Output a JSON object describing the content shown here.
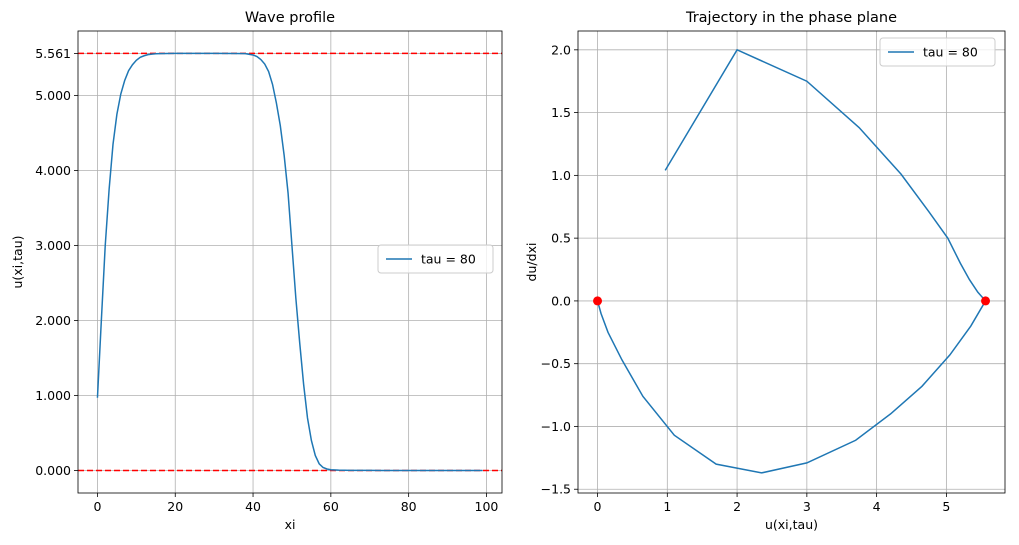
{
  "chart_data": [
    {
      "type": "line",
      "title": "Wave profile",
      "xlabel": "xi",
      "ylabel": "u(xi,tau)",
      "xlim": [
        -5,
        104
      ],
      "ylim": [
        -0.3,
        5.86
      ],
      "xticks": [
        0,
        20,
        40,
        60,
        80,
        100
      ],
      "xtick_labels": [
        "0",
        "20",
        "40",
        "60",
        "80",
        "100"
      ],
      "yticks": [
        0,
        1,
        2,
        3,
        4,
        5,
        5.561
      ],
      "ytick_labels": [
        "0.000",
        "1.000",
        "2.000",
        "3.000",
        "4.000",
        "5.000",
        "5.561"
      ],
      "grid": true,
      "legend_position": "center-right",
      "series": [
        {
          "name": "tau = 80",
          "color": "#1f77b4",
          "x": [
            0,
            1,
            2,
            3,
            4,
            5,
            6,
            7,
            8,
            9,
            10,
            11,
            12,
            13,
            14,
            15,
            16,
            18,
            20,
            25,
            30,
            35,
            38,
            40,
            41,
            42,
            43,
            44,
            45,
            46,
            47,
            48,
            49,
            50,
            51,
            52,
            53,
            54,
            55,
            56,
            57,
            58,
            59,
            60,
            62,
            65,
            70,
            80,
            90,
            99
          ],
          "y": [
            0.97,
            2.0,
            3.0,
            3.75,
            4.35,
            4.75,
            5.02,
            5.2,
            5.33,
            5.41,
            5.47,
            5.51,
            5.53,
            5.545,
            5.552,
            5.556,
            5.558,
            5.56,
            5.561,
            5.561,
            5.561,
            5.56,
            5.558,
            5.54,
            5.52,
            5.48,
            5.42,
            5.32,
            5.15,
            4.9,
            4.6,
            4.2,
            3.7,
            3.0,
            2.3,
            1.7,
            1.15,
            0.7,
            0.4,
            0.2,
            0.09,
            0.04,
            0.02,
            0.01,
            0.005,
            0.002,
            0.001,
            0.0,
            0.0,
            0.0
          ]
        }
      ],
      "reference_lines": [
        {
          "y": 5.561,
          "color": "#ff0000",
          "style": "dashed"
        },
        {
          "y": 0.0,
          "color": "#ff0000",
          "style": "dashed"
        }
      ]
    },
    {
      "type": "line",
      "title": "Trajectory in the phase plane",
      "xlabel": "u(xi,tau)",
      "ylabel": "du/dxi",
      "xlim": [
        -0.28,
        5.84
      ],
      "ylim": [
        -1.53,
        2.15
      ],
      "xticks": [
        0,
        1,
        2,
        3,
        4,
        5
      ],
      "xtick_labels": [
        "0",
        "1",
        "2",
        "3",
        "4",
        "5"
      ],
      "yticks": [
        -1.5,
        -1.0,
        -0.5,
        0.0,
        0.5,
        1.0,
        1.5,
        2.0
      ],
      "ytick_labels": [
        "−1.5",
        "−1.0",
        "−0.5",
        "0.0",
        "0.5",
        "1.0",
        "1.5",
        "2.0"
      ],
      "grid": true,
      "legend_position": "top-right",
      "series": [
        {
          "name": "tau = 80",
          "color": "#1f77b4",
          "x": [
            0.97,
            2.0,
            3.0,
            3.75,
            4.35,
            4.75,
            5.02,
            5.2,
            5.33,
            5.45,
            5.561,
            5.35,
            5.05,
            4.65,
            4.2,
            3.7,
            3.0,
            2.35,
            1.7,
            1.1,
            0.65,
            0.35,
            0.15,
            0.05,
            0.0
          ],
          "y": [
            1.04,
            2.0,
            1.75,
            1.38,
            1.01,
            0.71,
            0.5,
            0.3,
            0.17,
            0.07,
            0.0,
            -0.2,
            -0.43,
            -0.68,
            -0.9,
            -1.11,
            -1.29,
            -1.37,
            -1.3,
            -1.07,
            -0.76,
            -0.47,
            -0.25,
            -0.1,
            0.0
          ]
        }
      ],
      "points": [
        {
          "x": 0.0,
          "y": 0.0,
          "color": "#ff0000"
        },
        {
          "x": 5.561,
          "y": 0.0,
          "color": "#ff0000"
        }
      ]
    }
  ]
}
